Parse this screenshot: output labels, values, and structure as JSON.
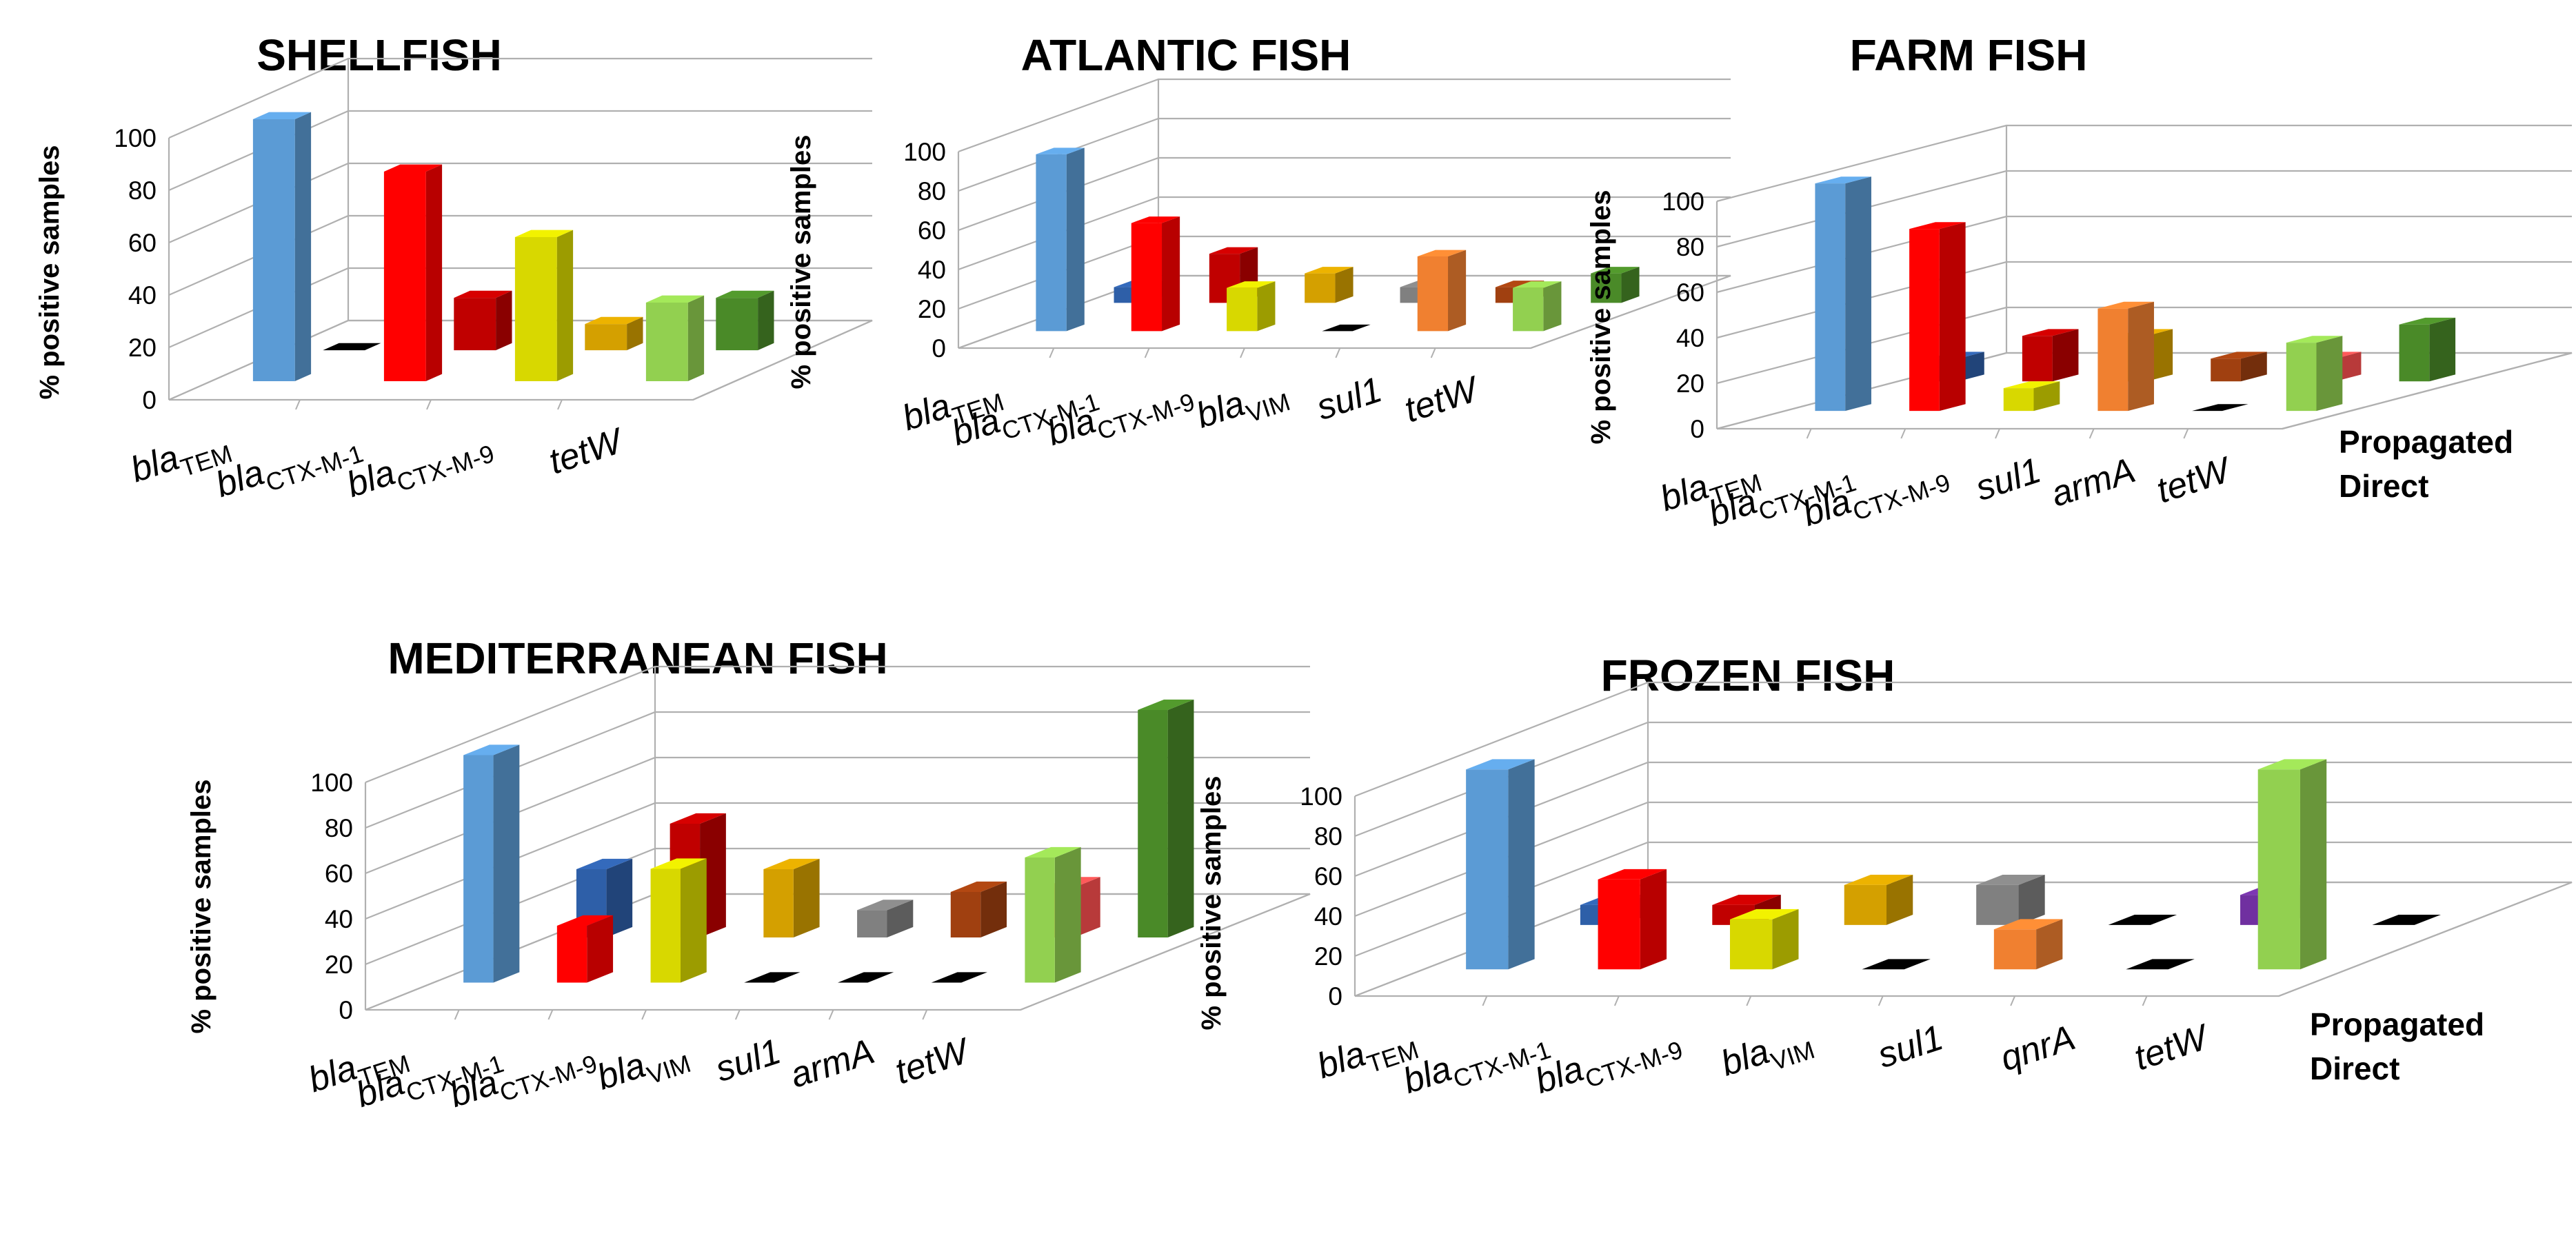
{
  "chart_data": [
    {
      "type": "bar",
      "title": "SHELLFISH",
      "ylabel": "% positive samples",
      "ylim": [
        0,
        100
      ],
      "yticks": [
        "0",
        "20",
        "40",
        "60",
        "80",
        "100"
      ],
      "categories": [
        {
          "prefix": "bla",
          "sub": "TEM"
        },
        {
          "prefix": "bla",
          "sub": "CTX-M-1"
        },
        {
          "prefix": "bla",
          "sub": "CTX-M-9"
        },
        {
          "prefix": "tetW",
          "sub": ""
        }
      ],
      "series": [
        {
          "name": "Direct",
          "values": [
            100,
            80,
            55,
            30
          ]
        },
        {
          "name": "Propagated",
          "values": [
            0,
            20,
            10,
            20
          ]
        }
      ]
    },
    {
      "type": "bar",
      "title": "ATLANTIC FISH",
      "ylabel": "% positive samples",
      "ylim": [
        0,
        100
      ],
      "yticks": [
        "0",
        "20",
        "40",
        "60",
        "80",
        "100"
      ],
      "categories": [
        {
          "prefix": "bla",
          "sub": "TEM"
        },
        {
          "prefix": "bla",
          "sub": "CTX-M-1"
        },
        {
          "prefix": "bla",
          "sub": "CTX-M-9"
        },
        {
          "prefix": "bla",
          "sub": "VIM"
        },
        {
          "prefix": "sul1",
          "sub": ""
        },
        {
          "prefix": "tetW",
          "sub": ""
        }
      ],
      "series": [
        {
          "name": "Direct",
          "values": [
            90,
            55,
            22,
            0,
            38,
            22
          ]
        },
        {
          "name": "Propagated",
          "values": [
            8,
            25,
            15,
            8,
            8,
            15
          ]
        }
      ]
    },
    {
      "type": "bar",
      "title": "FARM FISH",
      "ylabel": "% positive samples",
      "ylim": [
        0,
        100
      ],
      "yticks": [
        "0",
        "20",
        "40",
        "60",
        "80",
        "100"
      ],
      "categories": [
        {
          "prefix": "bla",
          "sub": "TEM"
        },
        {
          "prefix": "bla",
          "sub": "CTX-M-1"
        },
        {
          "prefix": "bla",
          "sub": "CTX-M-9"
        },
        {
          "prefix": "sul1",
          "sub": ""
        },
        {
          "prefix": "armA",
          "sub": ""
        },
        {
          "prefix": "tetW",
          "sub": ""
        }
      ],
      "series": [
        {
          "name": "Direct",
          "values": [
            100,
            80,
            10,
            45,
            0,
            30
          ]
        },
        {
          "name": "Propagated",
          "values": [
            10,
            20,
            20,
            10,
            10,
            25
          ]
        }
      ]
    },
    {
      "type": "bar",
      "title": "MEDITERRANEAN FISH",
      "ylabel": "% positive samples",
      "ylim": [
        0,
        100
      ],
      "yticks": [
        "0",
        "20",
        "40",
        "60",
        "80",
        "100"
      ],
      "categories": [
        {
          "prefix": "bla",
          "sub": "TEM"
        },
        {
          "prefix": "bla",
          "sub": "CTX-M-1"
        },
        {
          "prefix": "bla",
          "sub": "CTX-M-9"
        },
        {
          "prefix": "bla",
          "sub": "VIM"
        },
        {
          "prefix": "sul1",
          "sub": ""
        },
        {
          "prefix": "armA",
          "sub": ""
        },
        {
          "prefix": "tetW",
          "sub": ""
        }
      ],
      "series": [
        {
          "name": "Direct",
          "values": [
            100,
            25,
            50,
            0,
            0,
            0,
            55
          ]
        },
        {
          "name": "Propagated",
          "values": [
            30,
            50,
            30,
            12,
            20,
            22,
            100
          ]
        }
      ]
    },
    {
      "type": "bar",
      "title": "FROZEN FISH",
      "ylabel": "% positive samples",
      "ylim": [
        0,
        100
      ],
      "yticks": [
        "0",
        "20",
        "40",
        "60",
        "80",
        "100"
      ],
      "categories": [
        {
          "prefix": "bla",
          "sub": "TEM"
        },
        {
          "prefix": "bla",
          "sub": "CTX-M-1"
        },
        {
          "prefix": "bla",
          "sub": "CTX-M-9"
        },
        {
          "prefix": "bla",
          "sub": "VIM"
        },
        {
          "prefix": "sul1",
          "sub": ""
        },
        {
          "prefix": "qnrA",
          "sub": ""
        },
        {
          "prefix": "tetW",
          "sub": ""
        }
      ],
      "series": [
        {
          "name": "Direct",
          "values": [
            100,
            45,
            25,
            0,
            20,
            0,
            100
          ]
        },
        {
          "name": "Propagated",
          "values": [
            10,
            10,
            20,
            20,
            0,
            15,
            0
          ]
        }
      ]
    }
  ],
  "legend": {
    "propagated": "Propagated",
    "direct": "Direct"
  },
  "colors": {
    "direct": [
      "#5b9bd5",
      "#ff0000",
      "#d8d800",
      "#909090",
      "#f08030",
      "#ff5050",
      "#7030a0",
      "#92d050"
    ],
    "propagated": [
      "#2e5fa8",
      "#c00000",
      "#d4a000",
      "#808080",
      "#a04010",
      "#ff5050",
      "#7030a0",
      "#4a8a28"
    ],
    "missing": "#000000"
  }
}
